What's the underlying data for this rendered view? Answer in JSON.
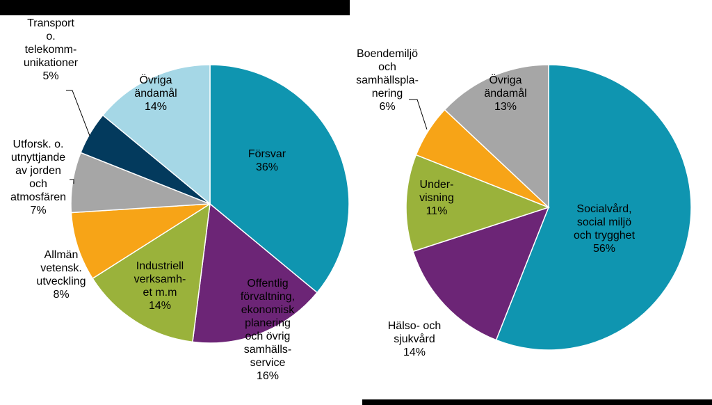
{
  "colors": {
    "teal": "#0f95b0",
    "purple": "#6c2576",
    "olive": "#9ab23b",
    "orange": "#f7a417",
    "gray": "#a6a6a6",
    "navy": "#033a5d",
    "lightblue": "#a5d7e6"
  },
  "chart_data": [
    {
      "type": "pie",
      "name": "left-pie",
      "title": "",
      "slices": [
        {
          "label": [
            "Försvar"
          ],
          "value": 36,
          "pct": "36%",
          "color": "teal"
        },
        {
          "label": [
            "Offentlig",
            "förvaltning,",
            "ekonomisk",
            "planering",
            "och övrig",
            "samhälls-",
            "service"
          ],
          "value": 16,
          "pct": "16%",
          "color": "purple"
        },
        {
          "label": [
            "Industriell",
            "verksamh-",
            "et m.m"
          ],
          "value": 14,
          "pct": "14%",
          "color": "olive"
        },
        {
          "label": [
            "Allmän",
            "vetensk.",
            "utveckling"
          ],
          "value": 8,
          "pct": "8%",
          "color": "orange"
        },
        {
          "label": [
            "Utforsk. o.",
            "utnyttjande",
            "av jorden",
            "och",
            "atmosfären"
          ],
          "value": 7,
          "pct": "7%",
          "color": "gray"
        },
        {
          "label": [
            "Transport",
            "o.",
            "telekomm-",
            "unikationer"
          ],
          "value": 5,
          "pct": "5%",
          "color": "navy"
        },
        {
          "label": [
            "Övriga",
            "ändamål"
          ],
          "value": 14,
          "pct": "14%",
          "color": "lightblue"
        }
      ]
    },
    {
      "type": "pie",
      "name": "right-pie",
      "title": "",
      "slices": [
        {
          "label": [
            "Socialvård,",
            "social miljö",
            "och trygghet"
          ],
          "value": 56,
          "pct": "56%",
          "color": "teal"
        },
        {
          "label": [
            "Hälso- och",
            "sjukvård"
          ],
          "value": 14,
          "pct": "14%",
          "color": "purple"
        },
        {
          "label": [
            "Under-",
            "visning"
          ],
          "value": 11,
          "pct": "11%",
          "color": "olive"
        },
        {
          "label": [
            "Boendemiljö",
            "och",
            "samhällspla-",
            "nering"
          ],
          "value": 6,
          "pct": "6%",
          "color": "orange"
        },
        {
          "label": [
            "Övriga",
            "ändamål"
          ],
          "value": 13,
          "pct": "13%",
          "color": "gray"
        }
      ]
    }
  ]
}
